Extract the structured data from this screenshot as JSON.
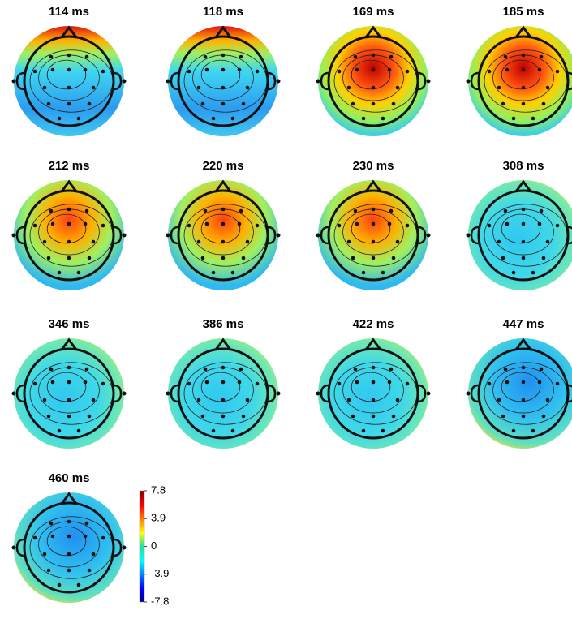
{
  "chart_data": {
    "type": "topomap",
    "maps": [
      "114 ms",
      "118 ms",
      "169 ms",
      "185 ms",
      "212 ms",
      "220 ms",
      "230 ms",
      "308 ms",
      "346 ms",
      "386 ms",
      "422 ms",
      "447 ms",
      "460 ms"
    ],
    "clim": [
      -7.8,
      7.8
    ],
    "cticks": [
      7.8,
      3.9,
      0,
      -3.9,
      -7.8
    ]
  }
}
